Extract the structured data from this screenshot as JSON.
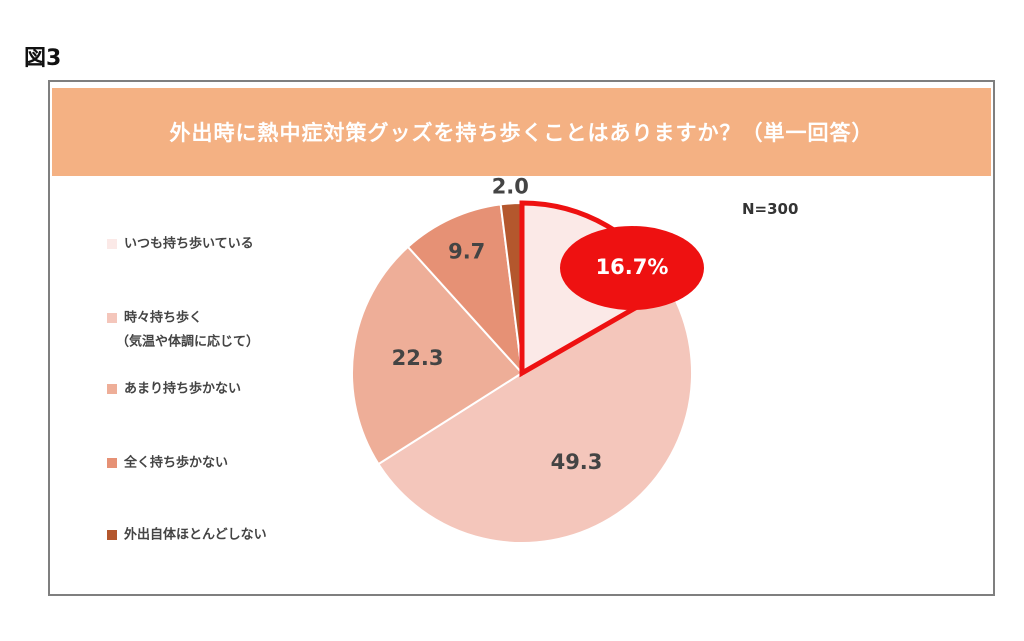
{
  "figure_label": "図3",
  "chart_data": {
    "type": "pie",
    "title": "外出時に熱中症対策グッズを持ち歩くことはありますか？（単一回答）",
    "n_label": "N=300",
    "slices": [
      {
        "label_lines": [
          "いつも持ち歩いている"
        ],
        "value": 16.7,
        "value_text": "16.7%",
        "color": "#fbe9e7",
        "highlighted": true
      },
      {
        "label_lines": [
          "時々持ち歩く",
          "（気温や体調に応じて）"
        ],
        "value": 49.3,
        "value_text": "49.3",
        "color": "#f4c6bb"
      },
      {
        "label_lines": [
          "あまり持ち歩かない"
        ],
        "value": 22.3,
        "value_text": "22.3",
        "color": "#eeae98"
      },
      {
        "label_lines": [
          "全く持ち歩かない"
        ],
        "value": 9.7,
        "value_text": "9.7",
        "color": "#e69175"
      },
      {
        "label_lines": [
          "外出自体ほとんどしない"
        ],
        "value": 2.0,
        "value_text": "2.0",
        "color": "#b4572d"
      }
    ],
    "highlight_color": "#ee1111",
    "legend_position": "left"
  }
}
